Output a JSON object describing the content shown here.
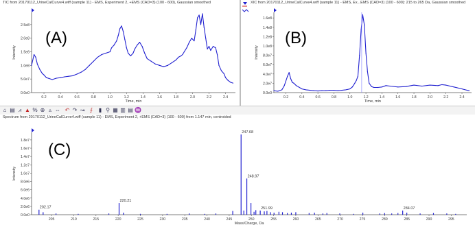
{
  "panels": {
    "A": {
      "letter": "(A)",
      "title": "TIC from 20170112_UrineCalCurve4.wiff (sample 11) - EMS, Experiment 2, +EMS (CAD=3) (100 - 600), Gaussian smoothed"
    },
    "B": {
      "letter": "(B)",
      "title": "XIC from 20170112_UrineCalCurve4.wiff (sample 11) - EMS, Ex...EMS (CAD=3) (100 - 600): 215 to 265 Da, Gaussian smoothed"
    },
    "C": {
      "letter": "(C)",
      "title": "Spectrum from 20170112_UrineCalCurve4.wiff (sample 11) - EMS, Experiment 2, +EMS (CAD=3) (100 - 600) from 1.147 min, centroided"
    }
  },
  "colors": {
    "trace": "#2020d0",
    "axis": "#555555",
    "cursor": "#2020d0",
    "marker_red": "#d02020"
  },
  "icons": [
    "home-icon",
    "zoom-icon",
    "peak-icon",
    "arrow-up-icon",
    "percent-icon",
    "zoom-in-icon",
    "centroid-icon",
    "link-icon",
    "undo-icon",
    "redo-icon",
    "curve-icon",
    "fit-icon",
    "delete-icon",
    "search-icon",
    "grid-icon",
    "table-icon",
    "list-icon",
    "spectrum-icon"
  ],
  "chart_data": [
    {
      "id": "A",
      "type": "line",
      "xlabel": "Time, min",
      "ylabel": "Intensity",
      "xlim": [
        0.05,
        2.52
      ],
      "ylim": [
        0,
        295000000.0
      ],
      "xticks": [
        0.2,
        0.4,
        0.6,
        0.8,
        1.0,
        1.2,
        1.4,
        1.6,
        1.8,
        2.0,
        2.2,
        2.4
      ],
      "xtick_labels": [
        "0.2",
        "0.4",
        "0.6",
        "0.8",
        "1.0",
        "1.2",
        "1.4",
        "1.6",
        "1.8",
        "2.0",
        "2.2",
        "2.4"
      ],
      "yticks": [
        0,
        50000000.0,
        100000000.0,
        150000000.0,
        200000000.0,
        250000000.0
      ],
      "ytick_labels": [
        "0.0e0",
        "5.0e7",
        "1.0e8",
        "1.5e8",
        "2.0e8",
        "2.5e8"
      ],
      "x": [
        0.05,
        0.08,
        0.1,
        0.12,
        0.15,
        0.18,
        0.2,
        0.23,
        0.26,
        0.3,
        0.35,
        0.4,
        0.45,
        0.5,
        0.55,
        0.6,
        0.65,
        0.7,
        0.75,
        0.8,
        0.85,
        0.9,
        0.95,
        1.0,
        1.02,
        1.05,
        1.08,
        1.1,
        1.12,
        1.14,
        1.16,
        1.18,
        1.2,
        1.22,
        1.25,
        1.28,
        1.3,
        1.33,
        1.36,
        1.39,
        1.42,
        1.45,
        1.5,
        1.55,
        1.6,
        1.65,
        1.7,
        1.75,
        1.8,
        1.83,
        1.86,
        1.88,
        1.9,
        1.93,
        1.96,
        1.99,
        2.02,
        2.04,
        2.06,
        2.08,
        2.1,
        2.12,
        2.14,
        2.16,
        2.18,
        2.2,
        2.22,
        2.25,
        2.28,
        2.3,
        2.32,
        2.35,
        2.38,
        2.4,
        2.43,
        2.46,
        2.49
      ],
      "y": [
        100000000.0,
        140000000.0,
        130000000.0,
        105000000.0,
        85000000.0,
        70000000.0,
        65000000.0,
        55000000.0,
        52000000.0,
        48000000.0,
        53000000.0,
        55000000.0,
        58000000.0,
        60000000.0,
        62000000.0,
        68000000.0,
        75000000.0,
        85000000.0,
        100000000.0,
        115000000.0,
        130000000.0,
        140000000.0,
        145000000.0,
        150000000.0,
        165000000.0,
        175000000.0,
        190000000.0,
        210000000.0,
        235000000.0,
        245000000.0,
        225000000.0,
        195000000.0,
        165000000.0,
        145000000.0,
        135000000.0,
        145000000.0,
        160000000.0,
        175000000.0,
        185000000.0,
        170000000.0,
        145000000.0,
        125000000.0,
        115000000.0,
        105000000.0,
        100000000.0,
        95000000.0,
        100000000.0,
        110000000.0,
        120000000.0,
        130000000.0,
        135000000.0,
        140000000.0,
        150000000.0,
        165000000.0,
        185000000.0,
        200000000.0,
        190000000.0,
        230000000.0,
        275000000.0,
        285000000.0,
        250000000.0,
        290000000.0,
        240000000.0,
        200000000.0,
        160000000.0,
        170000000.0,
        155000000.0,
        170000000.0,
        165000000.0,
        140000000.0,
        100000000.0,
        80000000.0,
        70000000.0,
        55000000.0,
        45000000.0,
        38000000.0,
        35000000.0
      ]
    },
    {
      "id": "B",
      "type": "line",
      "xlabel": "Time, min",
      "ylabel": "Intensity",
      "xlim": [
        0.05,
        2.52
      ],
      "ylim": [
        0,
        172000000.0
      ],
      "xticks": [
        0.2,
        0.4,
        0.6,
        0.8,
        1.0,
        1.2,
        1.4,
        1.6,
        1.8,
        2.0,
        2.2,
        2.4
      ],
      "xtick_labels": [
        "0.2",
        "0.4",
        "0.6",
        "0.8",
        "1.0",
        "1.2",
        "1.4",
        "1.6",
        "1.8",
        "2.0",
        "2.2",
        "2.4"
      ],
      "yticks": [
        0,
        20000000.0,
        40000000.0,
        60000000.0,
        80000000.0,
        100000000.0,
        120000000.0,
        140000000.0,
        160000000.0
      ],
      "ytick_labels": [
        "0.0e0",
        "2.0e7",
        "4.0e7",
        "6.0e7",
        "8.0e7",
        "1.0e8",
        "1.2e8",
        "1.4e8",
        "1.6e8"
      ],
      "x": [
        0.05,
        0.1,
        0.15,
        0.18,
        0.2,
        0.22,
        0.24,
        0.26,
        0.28,
        0.3,
        0.33,
        0.36,
        0.4,
        0.45,
        0.5,
        0.55,
        0.6,
        0.65,
        0.7,
        0.75,
        0.8,
        0.85,
        0.9,
        0.95,
        1.0,
        1.03,
        1.06,
        1.08,
        1.1,
        1.12,
        1.14,
        1.16,
        1.18,
        1.2,
        1.22,
        1.24,
        1.27,
        1.3,
        1.35,
        1.4,
        1.45,
        1.5,
        1.6,
        1.7,
        1.8,
        1.9,
        2.0,
        2.1,
        2.15,
        2.2,
        2.3,
        2.4,
        2.49
      ],
      "y": [
        4000000.0,
        3000000.0,
        6000000.0,
        15000000.0,
        25000000.0,
        35000000.0,
        43000000.0,
        30000000.0,
        22000000.0,
        20000000.0,
        15000000.0,
        12000000.0,
        8000000.0,
        6000000.0,
        5000000.0,
        4000000.0,
        3500000.0,
        4000000.0,
        4000000.0,
        5000000.0,
        5000000.0,
        4000000.0,
        5000000.0,
        6000000.0,
        8000000.0,
        12000000.0,
        20000000.0,
        26000000.0,
        35000000.0,
        80000000.0,
        135000000.0,
        167000000.0,
        145000000.0,
        85000000.0,
        45000000.0,
        20000000.0,
        13000000.0,
        11000000.0,
        11000000.0,
        12000000.0,
        15000000.0,
        14000000.0,
        12000000.0,
        13000000.0,
        16000000.0,
        14000000.0,
        16000000.0,
        15000000.0,
        17000000.0,
        16000000.0,
        12000000.0,
        8000000.0,
        4000000.0
      ]
    },
    {
      "id": "C",
      "type": "bar",
      "xlabel": "Mass/Charge, Da",
      "ylabel": "Intensity",
      "xlim": [
        200.5,
        298.5
      ],
      "ylim": [
        0,
        19800000.0
      ],
      "xticks": [
        205,
        210,
        215,
        220,
        225,
        230,
        235,
        240,
        245,
        250,
        255,
        260,
        265,
        270,
        275,
        280,
        285,
        290,
        295
      ],
      "xtick_labels": [
        "205",
        "210",
        "215",
        "220",
        "225",
        "230",
        "235",
        "240",
        "245",
        "250",
        "255",
        "260",
        "265",
        "270",
        "275",
        "280",
        "285",
        "290",
        "295"
      ],
      "yticks": [
        0,
        2000000.0,
        4000000.0,
        6000000.0,
        8000000.0,
        10000000.0,
        12000000.0,
        14000000.0,
        16000000.0,
        18000000.0
      ],
      "ytick_labels": [
        "0.0e0",
        "2.0e6",
        "4.0e6",
        "6.0e6",
        "8.0e6",
        "1.0e7",
        "1.2e7",
        "1.4e7",
        "1.6e7",
        "1.8e7"
      ],
      "x": [
        202.17,
        203.1,
        206.0,
        211.0,
        217.9,
        220.21,
        221.2,
        225.0,
        231.0,
        236.0,
        239.5,
        242.0,
        245.8,
        247.68,
        248.3,
        248.97,
        249.9,
        250.6,
        251.0,
        251.99,
        252.9,
        253.5,
        254.3,
        255.1,
        256.2,
        257.0,
        258.1,
        259.0,
        260.0,
        263.0,
        264.2,
        266.1,
        267.0,
        269.9,
        273.0,
        275.1,
        278.9,
        280.0,
        281.6,
        283.0,
        284.07,
        285.0,
        288.0,
        291.0,
        294.0,
        296.0
      ],
      "y": [
        1200000.0,
        600000.0,
        300000.0,
        200000.0,
        300000.0,
        2800000.0,
        500000.0,
        200000.0,
        200000.0,
        300000.0,
        200000.0,
        300000.0,
        900000.0,
        19300000.0,
        1000000.0,
        8700000.0,
        2800000.0,
        700000.0,
        1100000.0,
        1000000.0,
        800000.0,
        900000.0,
        600000.0,
        500000.0,
        700000.0,
        600000.0,
        400000.0,
        500000.0,
        600000.0,
        400000.0,
        500000.0,
        300000.0,
        400000.0,
        300000.0,
        200000.0,
        500000.0,
        300000.0,
        400000.0,
        300000.0,
        400000.0,
        1000000.0,
        500000.0,
        300000.0,
        400000.0,
        300000.0,
        200000.0
      ],
      "peak_labels": [
        {
          "x": 202.17,
          "text": "202.17"
        },
        {
          "x": 220.21,
          "text": "220.21"
        },
        {
          "x": 247.68,
          "text": "247.68"
        },
        {
          "x": 248.97,
          "text": "248.97"
        },
        {
          "x": 251.99,
          "text": "251.99"
        },
        {
          "x": 284.07,
          "text": "284.07"
        }
      ]
    }
  ]
}
